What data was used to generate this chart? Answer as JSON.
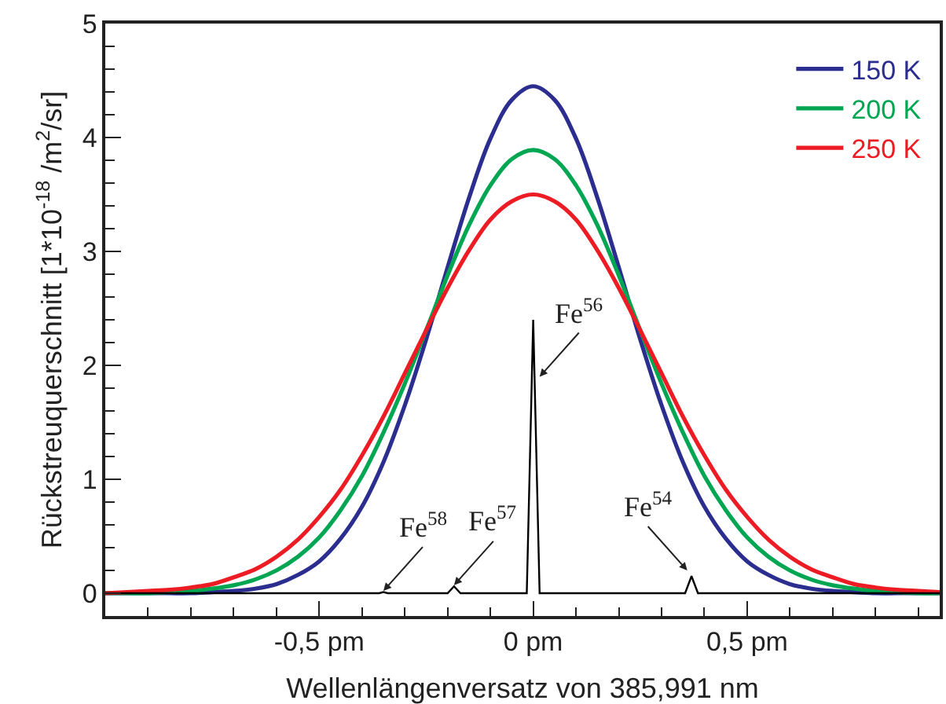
{
  "chart_data": {
    "type": "line",
    "xlabel": "Wellenlängenversatz von 385,991 nm",
    "ylabel": "Rückstreuquerschnitt [1*10$^{-18}$ /m$^{2}$/sr]",
    "x": [
      -1,
      -0.95,
      -0.9,
      -0.85,
      -0.8,
      -0.75,
      -0.7,
      -0.65,
      -0.6,
      -0.55,
      -0.5,
      -0.45,
      -0.4,
      -0.35,
      -0.3,
      -0.25,
      -0.2,
      -0.15,
      -0.1,
      -0.05,
      0,
      0.05,
      0.1,
      0.15,
      0.2,
      0.25,
      0.3,
      0.35,
      0.4,
      0.45,
      0.5,
      0.55,
      0.6,
      0.65,
      0.7,
      0.75,
      0.8,
      0.85,
      0.9,
      0.95
    ],
    "series": [
      {
        "name": "150 K",
        "color": "#2b2d8f",
        "values": [
          0,
          0,
          0,
          0,
          0,
          0.01,
          0.02,
          0.04,
          0.08,
          0.16,
          0.28,
          0.48,
          0.76,
          1.15,
          1.65,
          2.23,
          2.86,
          3.47,
          3.99,
          4.33,
          4.45,
          4.33,
          3.99,
          3.47,
          2.86,
          2.23,
          1.65,
          1.15,
          0.76,
          0.48,
          0.28,
          0.16,
          0.08,
          0.04,
          0.02,
          0.01,
          0,
          0,
          0,
          0
        ]
      },
      {
        "name": "200 K",
        "color": "#00a651",
        "values": [
          0,
          0,
          0,
          0.01,
          0.02,
          0.04,
          0.07,
          0.12,
          0.2,
          0.32,
          0.49,
          0.73,
          1.03,
          1.41,
          1.84,
          2.31,
          2.79,
          3.23,
          3.58,
          3.81,
          3.89,
          3.81,
          3.58,
          3.23,
          2.79,
          2.31,
          1.84,
          1.41,
          1.03,
          0.73,
          0.49,
          0.32,
          0.2,
          0.12,
          0.07,
          0.04,
          0.02,
          0.01,
          0,
          0
        ]
      },
      {
        "name": "250 K",
        "color": "#ed1c24",
        "values": [
          0,
          0.01,
          0.02,
          0.03,
          0.05,
          0.08,
          0.14,
          0.21,
          0.32,
          0.47,
          0.67,
          0.91,
          1.21,
          1.55,
          1.93,
          2.31,
          2.68,
          3.01,
          3.28,
          3.44,
          3.5,
          3.44,
          3.28,
          3.01,
          2.68,
          2.31,
          1.93,
          1.55,
          1.21,
          0.91,
          0.67,
          0.47,
          0.32,
          0.21,
          0.14,
          0.08,
          0.05,
          0.03,
          0.02,
          0.01
        ]
      },
      {
        "color": "#000000",
        "x": [
          -1,
          -0.36,
          -0.35,
          -0.34,
          -0.2,
          -0.185,
          -0.17,
          -0.015,
          0,
          0.015,
          0.355,
          0.37,
          0.385,
          0.95
        ],
        "values": [
          0,
          0,
          0.01,
          0,
          0,
          0.06,
          0,
          0,
          2.4,
          0,
          0,
          0.15,
          0,
          0
        ]
      }
    ],
    "annotations": [
      {
        "text": "Fe$^{58}$",
        "x": -0.35,
        "y": 0.02
      },
      {
        "text": "Fe$^{57}$",
        "x": -0.185,
        "y": 0.07
      },
      {
        "text": "Fe$^{56}$",
        "x": 0.015,
        "y": 1.9
      },
      {
        "text": "Fe$^{54}$",
        "x": 0.36,
        "y": 0.2
      }
    ],
    "xlim": [
      -1,
      0.95
    ],
    "xticks": [
      {
        "value": -0.5,
        "label": "-0,5 pm"
      },
      {
        "value": 0,
        "label": "0 pm"
      },
      {
        "value": 0.5,
        "label": "0,5 pm"
      }
    ],
    "ylim": [
      -0.2,
      5
    ],
    "yticks": [
      0,
      1,
      2,
      3,
      4,
      5
    ],
    "legend": "top right"
  }
}
